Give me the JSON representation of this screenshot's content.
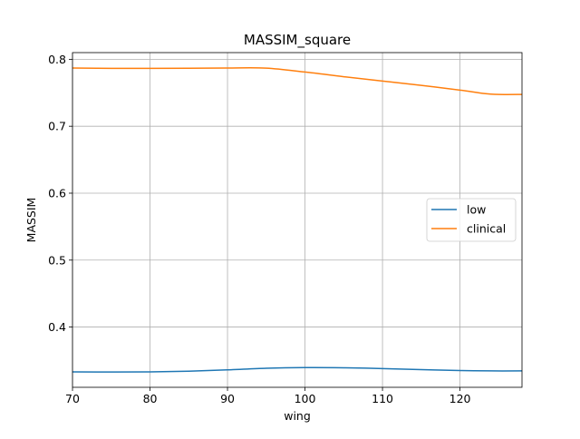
{
  "chart_data": {
    "type": "line",
    "title": "MASSIM_square",
    "xlabel": "wing",
    "ylabel": "MASSIM",
    "xlim": [
      70,
      128
    ],
    "ylim": [
      0.31,
      0.81
    ],
    "xticks": [
      70,
      80,
      90,
      100,
      110,
      120
    ],
    "yticks": [
      0.4,
      0.5,
      0.6,
      0.7,
      0.8
    ],
    "grid": true,
    "legend_position": "center-right",
    "series": [
      {
        "name": "low",
        "color": "#1f77b4",
        "x": [
          70,
          75,
          80,
          85,
          90,
          95,
          100,
          105,
          110,
          115,
          120,
          124,
          128
        ],
        "y": [
          0.333,
          0.3328,
          0.333,
          0.334,
          0.336,
          0.3385,
          0.3395,
          0.3392,
          0.338,
          0.3365,
          0.335,
          0.3345,
          0.3345
        ]
      },
      {
        "name": "clinical",
        "color": "#ff7f0e",
        "x": [
          70,
          75,
          80,
          85,
          90,
          95,
          100,
          105,
          110,
          115,
          120,
          123,
          125,
          128
        ],
        "y": [
          0.787,
          0.7865,
          0.7865,
          0.7866,
          0.787,
          0.7868,
          0.781,
          0.774,
          0.7675,
          0.761,
          0.754,
          0.749,
          0.7475,
          0.7475
        ]
      }
    ]
  }
}
